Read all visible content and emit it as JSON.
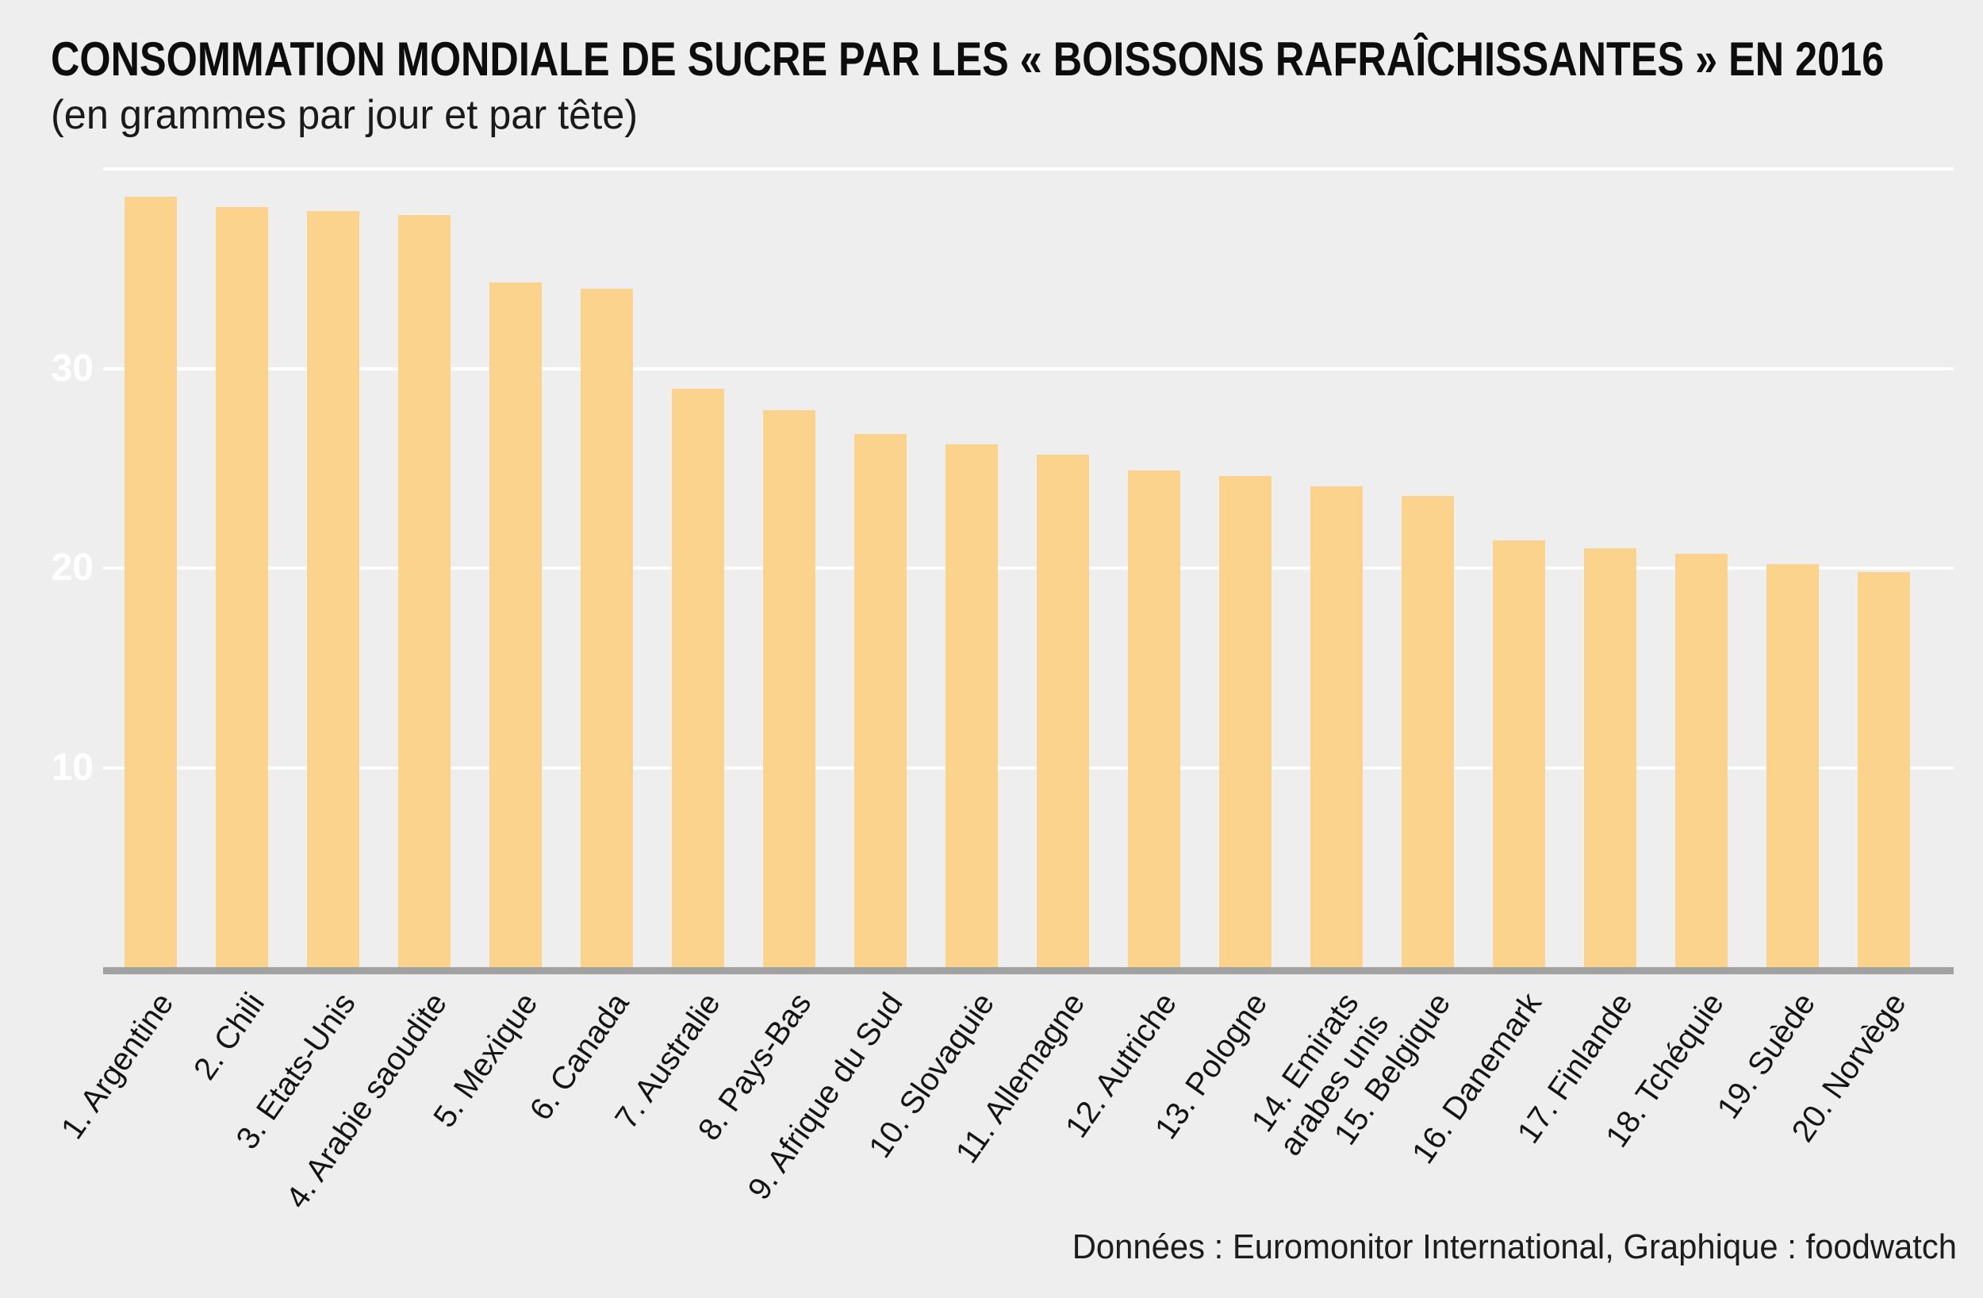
{
  "title": "CONSOMMATION MONDIALE DE SUCRE PAR LES « BOISSONS RAFRAÎCHISSANTES » EN 2016",
  "subtitle": "(en grammes par jour et par tête)",
  "source_note": "Données : Euromonitor International, Graphique : foodwatch",
  "colors": {
    "background": "#eeeeee",
    "bar": "#fcd38d",
    "gridline": "#ffffff",
    "axis_line": "#a2a2a2",
    "text": "#0d0d0d"
  },
  "y_axis": {
    "tick_labels": [
      10,
      20,
      30
    ],
    "gridline_values": [
      10,
      20,
      30,
      40
    ],
    "min": 0,
    "max": 40
  },
  "chart_data": {
    "type": "bar",
    "title": "CONSOMMATION MONDIALE DE SUCRE PAR LES « BOISSONS RAFRAÎCHISSANTES » EN 2016",
    "subtitle": "(en grammes par jour et par tête)",
    "xlabel": "",
    "ylabel": "grammes par jour et par tête",
    "ylim": [
      0,
      40
    ],
    "grid": true,
    "legend": false,
    "categories": [
      "1. Argentine",
      "2. Chili",
      "3. Etats-Unis",
      "4. Arabie saoudite",
      "5. Mexique",
      "6. Canada",
      "7. Australie",
      "8. Pays-Bas",
      "9. Afrique du Sud",
      "10. Slovaquie",
      "11. Allemagne",
      "12. Autriche",
      "13. Pologne",
      "14. Emirats\narabes unis",
      "15. Belgique",
      "16. Danemark",
      "17. Finlande",
      "18. Tchéquie",
      "19. Suède",
      "20. Norvège"
    ],
    "values": [
      38.6,
      38.1,
      37.9,
      37.7,
      34.3,
      34.0,
      29.0,
      27.9,
      26.7,
      26.2,
      25.7,
      24.9,
      24.6,
      24.1,
      23.6,
      21.4,
      21.0,
      20.7,
      20.2,
      19.8
    ]
  }
}
